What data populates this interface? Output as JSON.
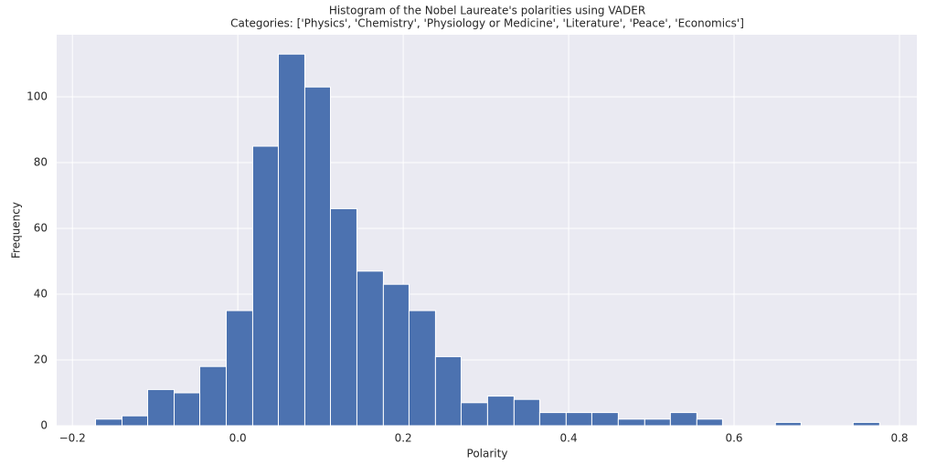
{
  "chart_data": {
    "type": "histogram",
    "title": "Histogram of the Nobel Laureate's polarities using VADER",
    "subtitle": "Categories: ['Physics', 'Chemistry', 'Physiology or Medicine', 'Literature', 'Peace', 'Economics']",
    "x_label": "Polarity",
    "y_label": "Frequency",
    "bins": [
      -0.172,
      -0.14,
      -0.109,
      -0.077,
      -0.046,
      -0.014,
      0.018,
      0.049,
      0.081,
      0.112,
      0.144,
      0.176,
      0.207,
      0.239,
      0.27,
      0.302,
      0.334,
      0.365,
      0.397,
      0.428,
      0.46,
      0.492,
      0.523,
      0.555,
      0.586,
      0.618,
      0.65,
      0.681,
      0.713,
      0.744,
      0.776
    ],
    "values": [
      2,
      3,
      11,
      10,
      18,
      35,
      85,
      113,
      103,
      66,
      47,
      43,
      35,
      21,
      7,
      9,
      8,
      4,
      4,
      4,
      2,
      2,
      4,
      2,
      0,
      0,
      1,
      0,
      0,
      1
    ],
    "color": "#4c72b0",
    "xlim": [
      -0.219,
      0.821
    ],
    "xticks": [
      {
        "value": -0.2,
        "label": "−0.2"
      },
      {
        "value": 0,
        "label": "0.0"
      },
      0.2,
      0.4,
      0.6,
      0.8
    ],
    "ylim": [
      0,
      118.9
    ],
    "yticks": [
      0,
      20,
      40,
      60,
      80,
      100
    ],
    "grid": true
  }
}
